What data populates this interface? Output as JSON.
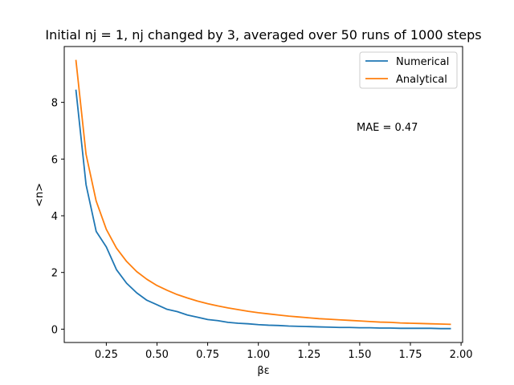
{
  "chart_data": {
    "type": "line",
    "title": "Initial nj = 1, nj changed by 3, averaged over 50 runs of 1000 steps",
    "xlabel": "βε",
    "ylabel": "<n>",
    "xlim": [
      0.0425,
      2.0075
    ],
    "ylim": [
      -0.47,
      9.97
    ],
    "xticks": [
      0.25,
      0.5,
      0.75,
      1.0,
      1.25,
      1.5,
      1.75,
      2.0
    ],
    "xtick_labels": [
      "0.25",
      "0.50",
      "0.75",
      "1.00",
      "1.25",
      "1.50",
      "1.75",
      "2.00"
    ],
    "yticks": [
      0,
      2,
      4,
      6,
      8
    ],
    "ytick_labels": [
      "0",
      "2",
      "4",
      "6",
      "8"
    ],
    "grid": false,
    "legend_position": "top-right",
    "annotation": "MAE = 0.47",
    "x": [
      0.1,
      0.15,
      0.2,
      0.25,
      0.3,
      0.35,
      0.4,
      0.45,
      0.5,
      0.55,
      0.6,
      0.65,
      0.7,
      0.75,
      0.8,
      0.85,
      0.9,
      0.95,
      1.0,
      1.05,
      1.1,
      1.15,
      1.2,
      1.25,
      1.3,
      1.35,
      1.4,
      1.45,
      1.5,
      1.55,
      1.6,
      1.65,
      1.7,
      1.75,
      1.8,
      1.85,
      1.9,
      1.95
    ],
    "series": [
      {
        "name": "Numerical",
        "color": "#1f77b4",
        "values": [
          8.45,
          5.1,
          3.45,
          2.9,
          2.1,
          1.62,
          1.28,
          1.02,
          0.86,
          0.7,
          0.62,
          0.5,
          0.42,
          0.34,
          0.3,
          0.24,
          0.21,
          0.19,
          0.16,
          0.14,
          0.13,
          0.11,
          0.1,
          0.09,
          0.08,
          0.07,
          0.06,
          0.06,
          0.05,
          0.05,
          0.04,
          0.04,
          0.03,
          0.03,
          0.03,
          0.03,
          0.02,
          0.02
        ]
      },
      {
        "name": "Analytical",
        "color": "#ff7f0e",
        "values": [
          9.5,
          6.17,
          4.52,
          3.52,
          2.86,
          2.39,
          2.03,
          1.76,
          1.54,
          1.37,
          1.22,
          1.1,
          0.99,
          0.9,
          0.82,
          0.75,
          0.69,
          0.63,
          0.58,
          0.54,
          0.5,
          0.46,
          0.43,
          0.4,
          0.37,
          0.35,
          0.33,
          0.31,
          0.29,
          0.27,
          0.25,
          0.24,
          0.22,
          0.21,
          0.2,
          0.19,
          0.18,
          0.17
        ]
      }
    ]
  }
}
